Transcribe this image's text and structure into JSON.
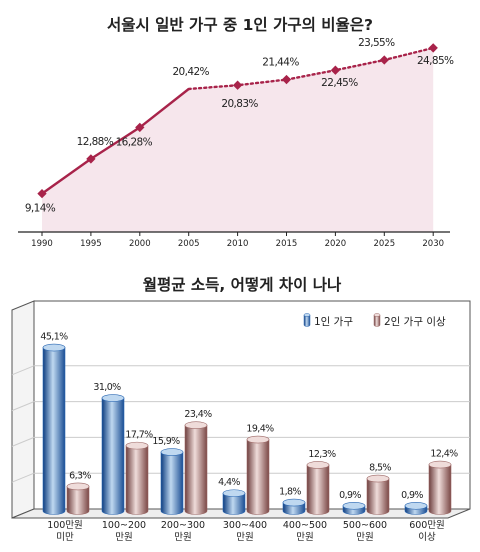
{
  "chart_data": [
    {
      "type": "line",
      "title": "서울시 일반 가구 중 1인 가구의 비율은?",
      "x": [
        "1990",
        "1995",
        "2000",
        "2005",
        "2010",
        "2015",
        "2020",
        "2025",
        "2030"
      ],
      "values": [
        9.14,
        12.88,
        16.28,
        20.42,
        20.83,
        21.44,
        22.45,
        23.55,
        24.85
      ],
      "labels": [
        "9,14%",
        "12,88%",
        "16,28%",
        "20,42%",
        "20,83%",
        "21,44%",
        "22,45%",
        "23,55%",
        "24,85%"
      ],
      "solid_until": "2005",
      "projected_from": "2005",
      "ylim": [
        5,
        27
      ],
      "colors": {
        "line": "#a8234a",
        "area": "#f6e6ec",
        "axis": "#222222"
      }
    },
    {
      "type": "bar",
      "title": "월평균 소득, 어떻게 차이 나나",
      "categories": [
        [
          "100만원",
          "미만"
        ],
        [
          "100~200",
          "만원"
        ],
        [
          "200~300",
          "만원"
        ],
        [
          "300~400",
          "만원"
        ],
        [
          "400~500",
          "만원"
        ],
        [
          "500~600",
          "만원"
        ],
        [
          "600만원",
          "이상"
        ]
      ],
      "series": [
        {
          "name": "1인 가구",
          "values": [
            45.1,
            31.0,
            15.9,
            4.4,
            1.8,
            0.9,
            0.9
          ],
          "labels": [
            "45,1%",
            "31,0%",
            "15,9%",
            "4,4%",
            "1,8%",
            "0,9%",
            "0,9%"
          ]
        },
        {
          "name": "2인 가구 이상",
          "values": [
            6.3,
            17.7,
            23.4,
            19.4,
            12.3,
            8.5,
            12.4
          ],
          "labels": [
            "6,3%",
            "17,7%",
            "23,4%",
            "19,4%",
            "12,3%",
            "8,5%",
            "12,4%"
          ]
        }
      ],
      "ylim": [
        0,
        50
      ],
      "legend": "top-right",
      "grid": true,
      "colors": {
        "series1": "#2d69b3",
        "series1_light": "#bfd8f0",
        "series2": "#9e6a68",
        "series2_light": "#efdcda",
        "grid": "#cccccc",
        "frame": "#555555"
      }
    }
  ]
}
